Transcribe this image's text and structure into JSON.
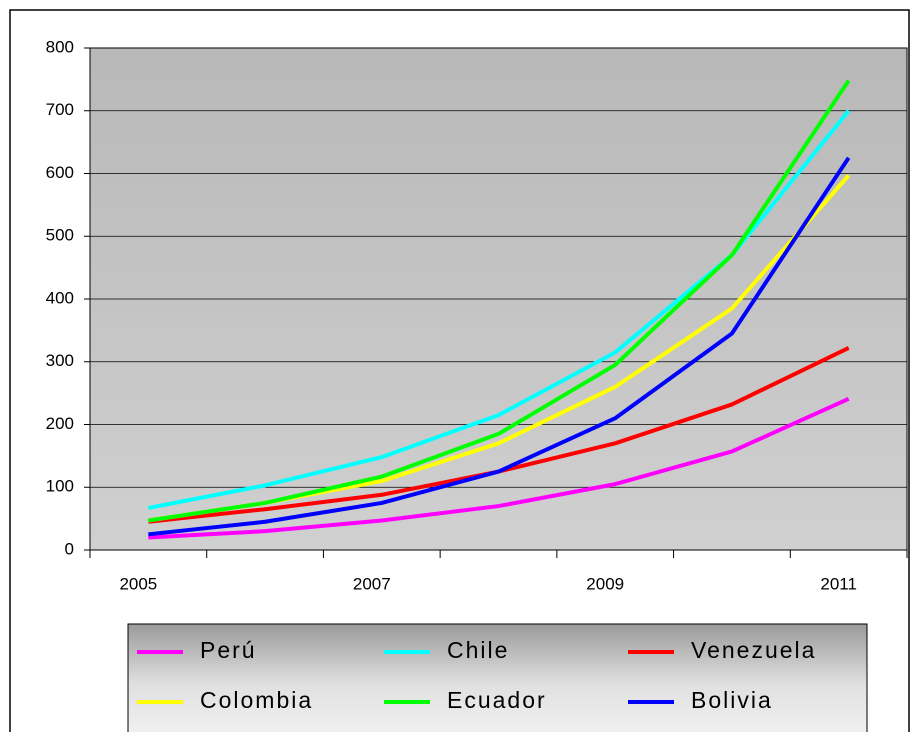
{
  "chart_data": {
    "type": "line",
    "categories": [
      "2005",
      null,
      "2007",
      null,
      "2009",
      null,
      "2011"
    ],
    "series": [
      {
        "name": "Perú",
        "color": "#ff00ff",
        "values": [
          20,
          30,
          47,
          70,
          105,
          157,
          241
        ]
      },
      {
        "name": "Chile",
        "color": "#00ffff",
        "values": [
          67,
          103,
          148,
          215,
          315,
          470,
          700
        ]
      },
      {
        "name": "Venezuela",
        "color": "#ff0000",
        "values": [
          45,
          65,
          88,
          125,
          170,
          232,
          322
        ]
      },
      {
        "name": "Colombia",
        "color": "#ffff00",
        "values": [
          47,
          75,
          110,
          170,
          260,
          385,
          597
        ]
      },
      {
        "name": "Ecuador",
        "color": "#00ff00",
        "values": [
          47,
          75,
          117,
          185,
          295,
          470,
          748
        ]
      },
      {
        "name": "Bolivia",
        "color": "#0000ff",
        "values": [
          25,
          45,
          75,
          125,
          210,
          345,
          625
        ]
      }
    ],
    "ylim": [
      0,
      800
    ],
    "yticks": [
      0,
      100,
      200,
      300,
      400,
      500,
      600,
      700,
      800
    ],
    "grid": true
  }
}
